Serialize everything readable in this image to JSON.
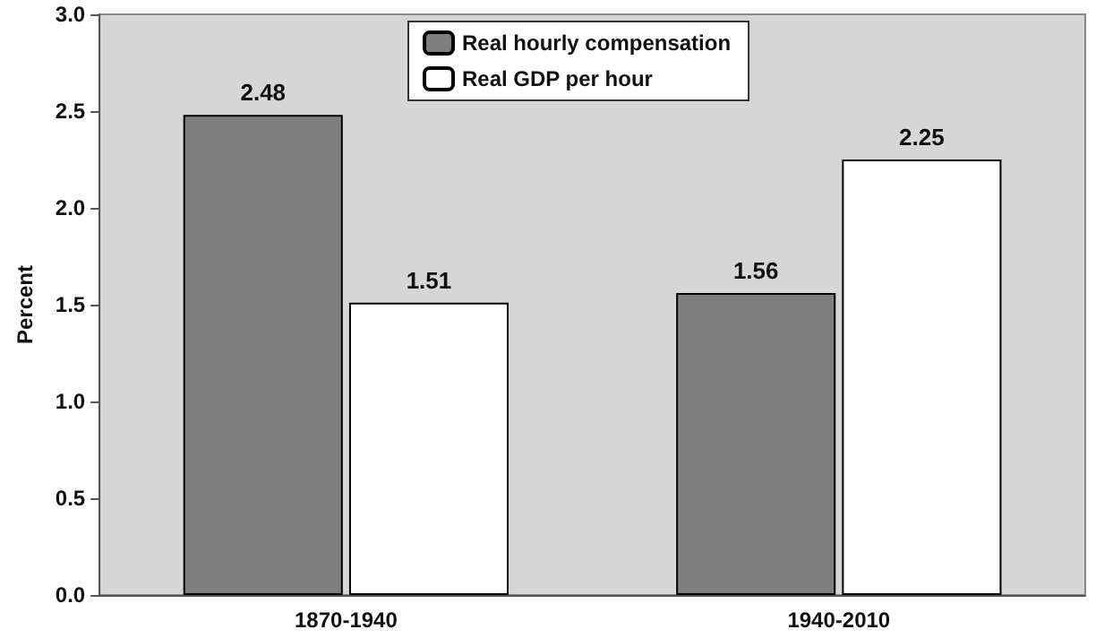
{
  "chart_data": {
    "type": "bar",
    "ylabel": "Percent",
    "categories": [
      "1870-1940",
      "1940-2010"
    ],
    "series": [
      {
        "name": "Real hourly compensation",
        "color": "#7f7f7f",
        "values": [
          2.48,
          1.56
        ]
      },
      {
        "name": "Real GDP per hour",
        "color": "#ffffff",
        "values": [
          1.51,
          2.25
        ]
      }
    ],
    "ylim": [
      0,
      3
    ],
    "yticks": [
      {
        "value": 0,
        "label": "0.0"
      },
      {
        "value": 0.5,
        "label": "0.5"
      },
      {
        "value": 1,
        "label": "1.0"
      },
      {
        "value": 1.5,
        "label": "1.5"
      },
      {
        "value": 2,
        "label": "2.0"
      },
      {
        "value": 2.5,
        "label": "2.5"
      },
      {
        "value": 3,
        "label": "3.0"
      }
    ],
    "data_labels": true,
    "legend": "top",
    "grid": false
  }
}
